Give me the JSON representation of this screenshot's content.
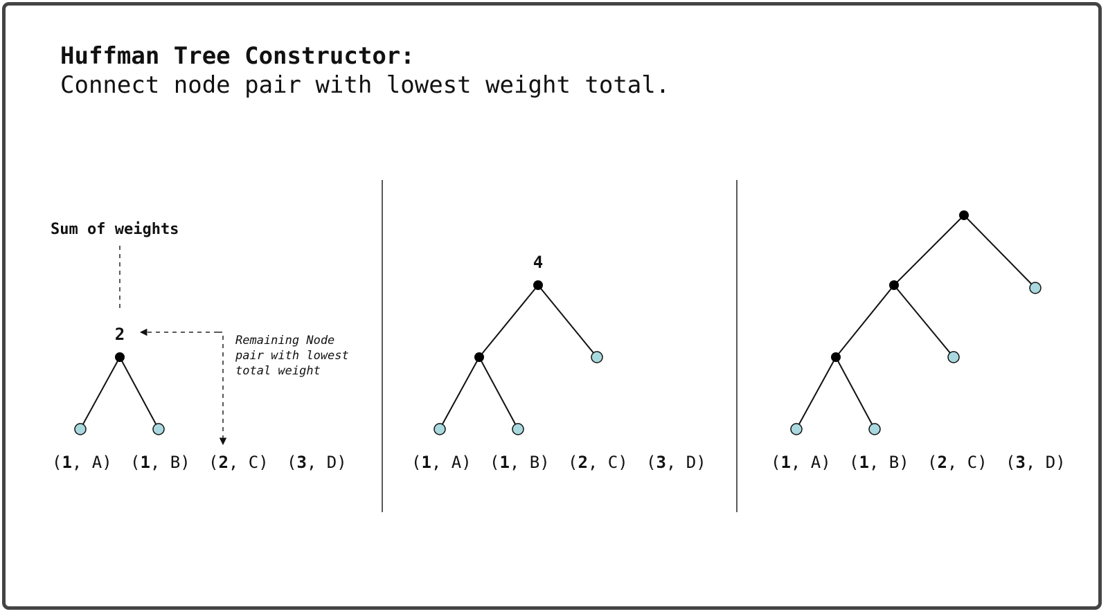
{
  "header": {
    "title": "Huffman Tree Constructor:",
    "subtitle": "Connect node pair with lowest weight total."
  },
  "annotations": {
    "sum_label": "Sum of weights",
    "pair_note": [
      "Remaining Node",
      "pair with lowest",
      "total weight"
    ]
  },
  "leaves": [
    {
      "weight": "1",
      "symbol": "A"
    },
    {
      "weight": "1",
      "symbol": "B"
    },
    {
      "weight": "2",
      "symbol": "C"
    },
    {
      "weight": "3",
      "symbol": "D"
    }
  ],
  "steps": [
    {
      "root_weight": "2"
    },
    {
      "root_weight": "4"
    },
    {
      "root_weight": ""
    }
  ],
  "colors": {
    "leaf_fill": "#a9d9de",
    "node_fill": "#000000",
    "line": "#111111",
    "frame": "#444444"
  }
}
